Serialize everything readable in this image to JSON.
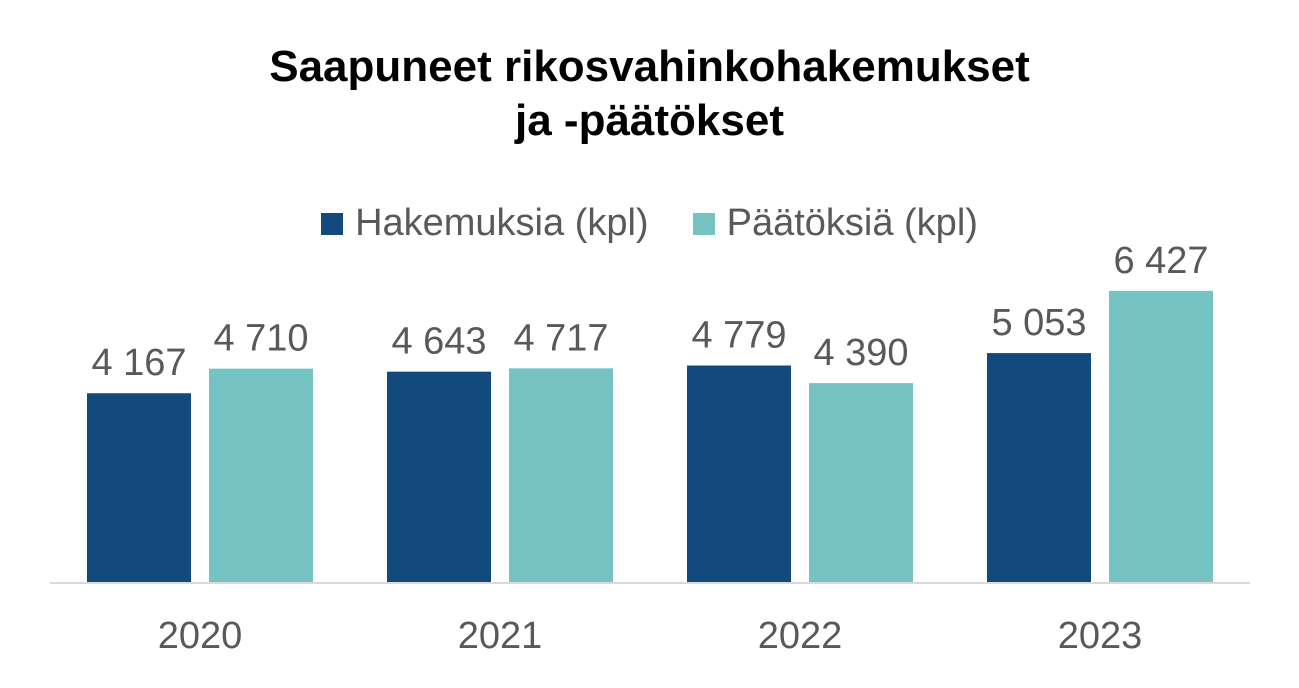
{
  "chart_data": {
    "type": "bar",
    "title": [
      "Saapuneet rikosvahinkohakemukset",
      "ja -päätökset"
    ],
    "categories": [
      "2020",
      "2021",
      "2022",
      "2023"
    ],
    "series": [
      {
        "name": "Hakemuksia (kpl)",
        "color": "#124a7e",
        "values": [
          4167,
          4643,
          4779,
          5053
        ],
        "labels": [
          "4 167",
          "4 643",
          "4 779",
          "5 053"
        ]
      },
      {
        "name": "Päätöksiä (kpl)",
        "color": "#76c3c3",
        "values": [
          4710,
          4717,
          4390,
          6427
        ],
        "labels": [
          "4 710",
          "4 717",
          "4 390",
          "6 427"
        ]
      }
    ],
    "xlabel": "",
    "ylabel": "",
    "ylim": [
      0,
      8000
    ],
    "grid": false,
    "legend": "top-center"
  }
}
